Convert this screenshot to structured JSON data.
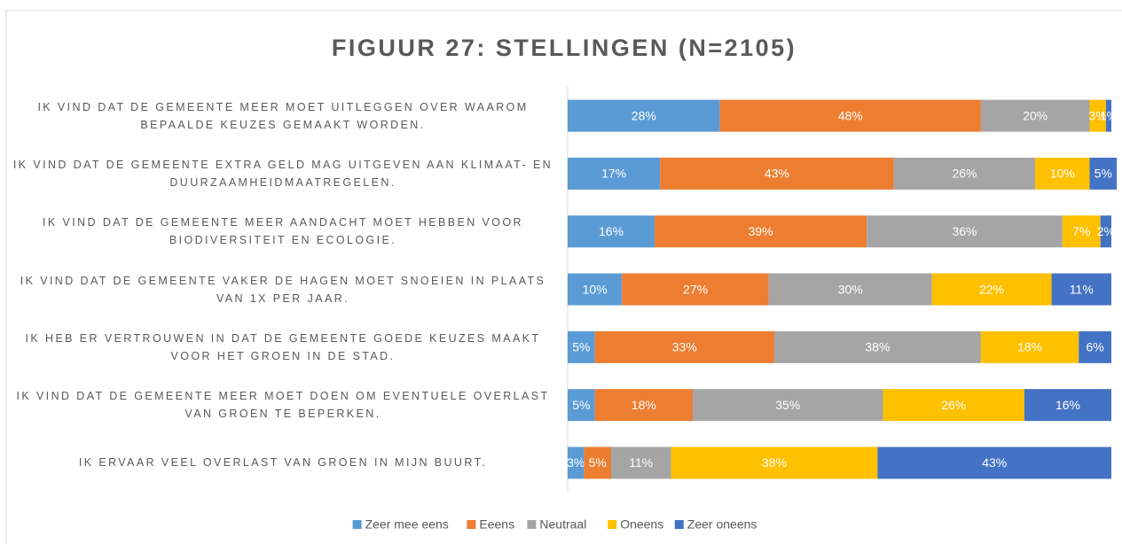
{
  "chart_data": {
    "type": "stacked_bar_horizontal",
    "title": "FIGUUR 27: STELLINGEN (N=2105)",
    "categories": [
      "IK VIND DAT DE GEMEENTE MEER MOET UITLEGGEN OVER WAAROM BEPAALDE KEUZES GEMAAKT WORDEN.",
      "IK VIND DAT DE GEMEENTE EXTRA GELD MAG UITGEVEN AAN KLIMAAT- EN DUURZAAMHEIDMAATREGELEN.",
      "IK VIND DAT DE GEMEENTE MEER AANDACHT MOET HEBBEN VOOR BIODIVERSITEIT EN ECOLOGIE.",
      "IK VIND DAT DE GEMEENTE VAKER DE HAGEN MOET SNOEIEN IN PLAATS VAN 1X PER JAAR.",
      "IK HEB ER VERTROUWEN IN DAT DE GEMEENTE GOEDE KEUZES MAAKT VOOR HET GROEN IN DE STAD.",
      "IK VIND DAT DE GEMEENTE MEER MOET DOEN OM EVENTUELE OVERLAST VAN GROEN TE BEPERKEN.",
      "IK ERVAAR VEEL OVERLAST VAN GROEN IN MIJN BUURT."
    ],
    "series": [
      {
        "name": "Zeer mee eens",
        "color": "#5b9bd5",
        "values": [
          28,
          17,
          16,
          10,
          5,
          5,
          3
        ],
        "value_labels": [
          "28%",
          "17%",
          "16%",
          "10%",
          "5%",
          "5%",
          "3%"
        ]
      },
      {
        "name": "Eeens",
        "color": "#ed7d31",
        "values": [
          48,
          43,
          39,
          27,
          33,
          18,
          5
        ],
        "value_labels": [
          "48%",
          "43%",
          "39%",
          "27%",
          "33%",
          "18%",
          "5%"
        ]
      },
      {
        "name": "Neutraal",
        "color": "#a5a5a5",
        "values": [
          20,
          26,
          36,
          30,
          38,
          35,
          11
        ],
        "value_labels": [
          "20%",
          "26%",
          "36%",
          "30%",
          "38%",
          "35%",
          "11%"
        ]
      },
      {
        "name": "Oneens",
        "color": "#ffc000",
        "values": [
          3,
          10,
          7,
          22,
          18,
          26,
          38
        ],
        "value_labels": [
          "3%",
          "10%",
          "7%",
          "22%",
          "18%",
          "26%",
          "38%"
        ]
      },
      {
        "name": "Zeer oneens",
        "color": "#4472c4",
        "values": [
          1,
          5,
          2,
          11,
          6,
          16,
          43
        ],
        "value_labels": [
          "1%",
          "5%",
          "2%",
          "11%",
          "6%",
          "16%",
          "43%"
        ]
      }
    ],
    "xlim": [
      0,
      100
    ],
    "legend": "bottom"
  }
}
